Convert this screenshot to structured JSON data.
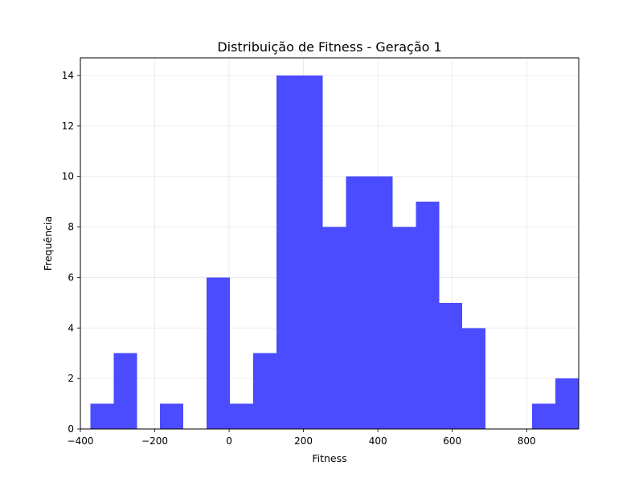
{
  "chart_data": {
    "type": "bar",
    "histogram": true,
    "title": "Distribuição de Fitness - Geração 1",
    "xlabel": "Fitness",
    "ylabel": "Frequência",
    "xlim": [
      -400,
      940
    ],
    "ylim": [
      0,
      14.7
    ],
    "xticks": [
      -400,
      -200,
      0,
      200,
      400,
      600,
      800
    ],
    "xtick_labels": [
      "−400",
      "−200",
      "0",
      "200",
      "400",
      "600",
      "800"
    ],
    "yticks": [
      0,
      2,
      4,
      6,
      8,
      10,
      12,
      14
    ],
    "ytick_labels": [
      "0",
      "2",
      "4",
      "6",
      "8",
      "10",
      "12",
      "14"
    ],
    "grid": true,
    "bar_color": "#4b4bff",
    "bin_start": -373,
    "bin_width": 62.5,
    "counts": [
      1,
      3,
      0,
      1,
      0,
      6,
      1,
      3,
      14,
      14,
      8,
      10,
      10,
      8,
      9,
      5,
      4,
      0,
      0,
      1,
      2
    ]
  }
}
